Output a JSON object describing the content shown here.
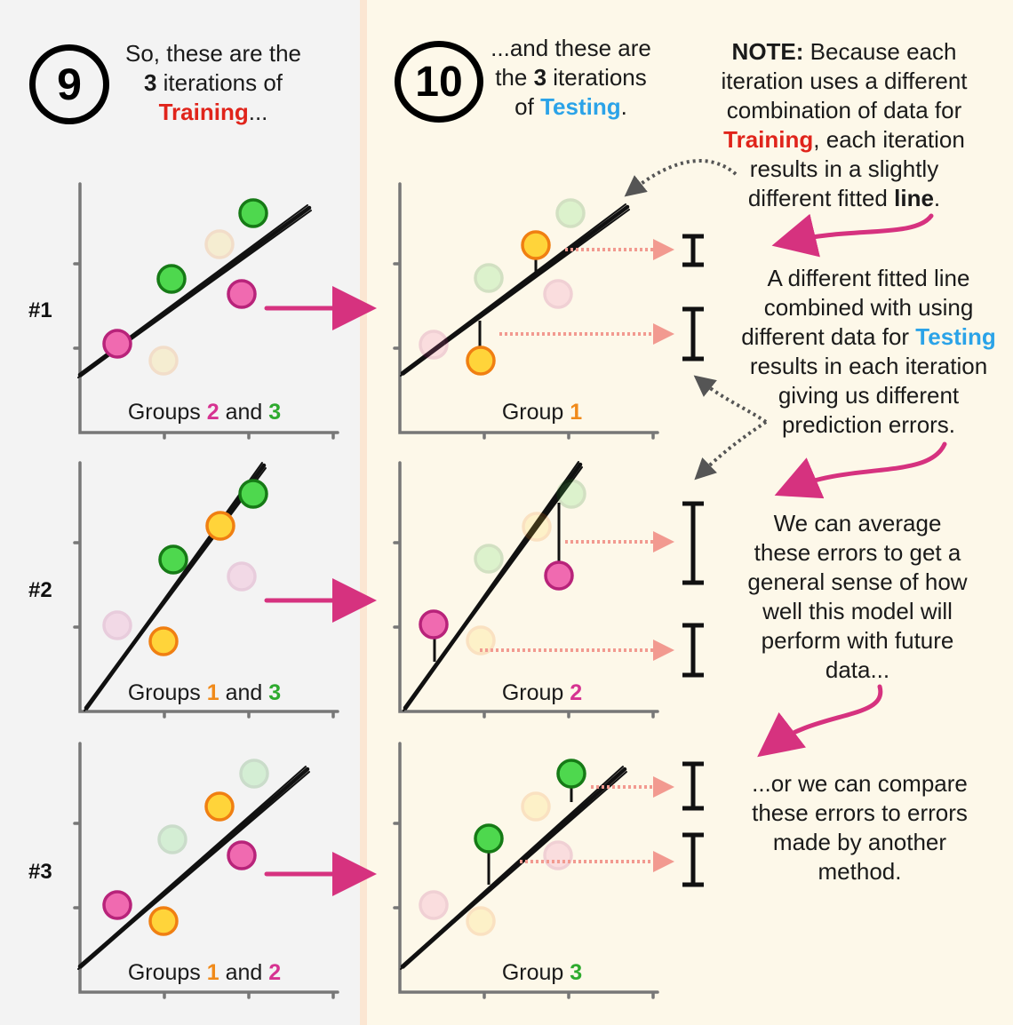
{
  "colors": {
    "left_panel": "#f3f3f3",
    "right_panel": "#fdf8e9",
    "frame": "#fbe6d2",
    "training_red": "#e0241b",
    "testing_blue": "#2ba3e8",
    "pink": "#d63391",
    "green": "#2eaa2e",
    "orange": "#f08a1a",
    "magenta_arrow": "#d6327f",
    "dotted_error": "#f29a90"
  },
  "step9": {
    "number": "9",
    "line1": "So, these are the",
    "line2_num": "3",
    "line2_rest": " iterations of",
    "line3_word": "Training",
    "line3_rest": "..."
  },
  "step10": {
    "number": "10",
    "line1": "...and these are",
    "line2_pre": "the ",
    "line2_num": "3",
    "line2_rest": " iterations",
    "line3_pre": "of ",
    "line3_word": "Testing",
    "line3_rest": "."
  },
  "note": {
    "label": "NOTE:",
    "l1_rest": " Because each",
    "l2": "iteration uses a different",
    "l3": "combination of data for",
    "l4_word": "Training",
    "l4_rest": ", each iteration",
    "l5": "results in a slightly",
    "l6_pre": "different fitted ",
    "l6_word": "line",
    "l6_rest": "."
  },
  "explain1": {
    "l1": "A different fitted line",
    "l2": "combined with using",
    "l3_pre": "different data for ",
    "l3_word": "Testing",
    "l4": "results in each iteration",
    "l5": "giving us different",
    "l6": "prediction errors."
  },
  "explain2": {
    "l1": "We can average",
    "l2": "these errors to get a",
    "l3": "general sense of how",
    "l4": "well this model will",
    "l5": "perform with future",
    "l6": "data..."
  },
  "explain3": {
    "l1": "...or we can compare",
    "l2": "these errors to errors",
    "l3": "made by another",
    "l4": "method."
  },
  "rows": [
    {
      "label": "#1",
      "train_pre": "Groups ",
      "train_a": "2",
      "train_mid": " and ",
      "train_b": "3",
      "train_a_color": "pink",
      "train_b_color": "green",
      "test_pre": "Group ",
      "test_num": "1",
      "test_color": "orange"
    },
    {
      "label": "#2",
      "train_pre": "Groups ",
      "train_a": "1",
      "train_mid": " and ",
      "train_b": "3",
      "train_a_color": "orange",
      "train_b_color": "green",
      "test_pre": "Group ",
      "test_num": "2",
      "test_color": "pink"
    },
    {
      "label": "#3",
      "train_pre": "Groups ",
      "train_a": "1",
      "train_mid": " and ",
      "train_b": "2",
      "train_a_color": "orange",
      "train_b_color": "pink",
      "test_pre": "Group ",
      "test_num": "3",
      "test_color": "green"
    }
  ]
}
